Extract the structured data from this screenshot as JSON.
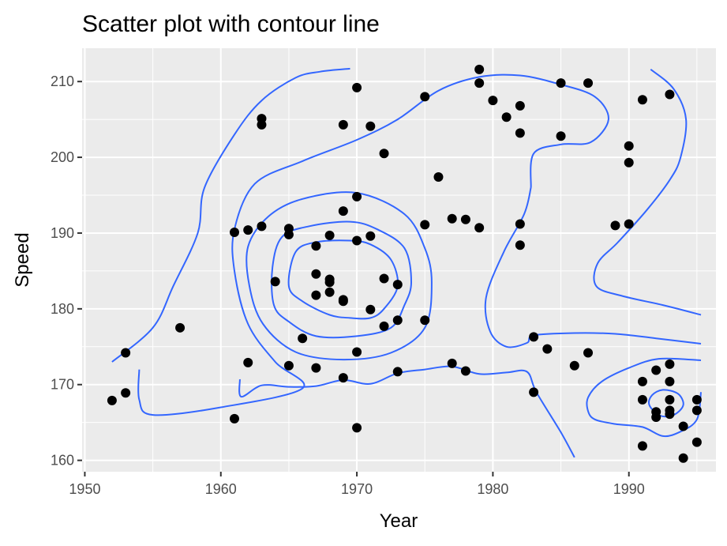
{
  "chart_data": {
    "type": "scatter",
    "title": "Scatter plot with contour line",
    "xlabel": "Year",
    "ylabel": "Speed",
    "xlim": [
      1949.8,
      1996.4
    ],
    "ylim": [
      158.5,
      214.4
    ],
    "x_ticks": [
      1950,
      1960,
      1970,
      1980,
      1990
    ],
    "y_ticks": [
      160,
      170,
      180,
      190,
      200,
      210
    ],
    "grid": true,
    "legend": "none",
    "colors": {
      "panel": "#ebebeb",
      "grid": "#ffffff",
      "point": "#000000",
      "contour": "#3366ff"
    },
    "points": [
      [
        1952,
        167.9
      ],
      [
        1953,
        168.9
      ],
      [
        1953,
        174.2
      ],
      [
        1957,
        177.5
      ],
      [
        1961,
        165.5
      ],
      [
        1961,
        190.1
      ],
      [
        1962,
        190.4
      ],
      [
        1962,
        172.9
      ],
      [
        1963,
        190.9
      ],
      [
        1963,
        205.1
      ],
      [
        1963,
        204.3
      ],
      [
        1964,
        183.6
      ],
      [
        1965,
        190.6
      ],
      [
        1965,
        189.8
      ],
      [
        1965,
        172.5
      ],
      [
        1966,
        176.1
      ],
      [
        1967,
        188.3
      ],
      [
        1967,
        184.6
      ],
      [
        1967,
        181.8
      ],
      [
        1967,
        172.2
      ],
      [
        1968,
        189.7
      ],
      [
        1968,
        183.9
      ],
      [
        1968,
        183.5
      ],
      [
        1968,
        182.2
      ],
      [
        1969,
        181.2
      ],
      [
        1969,
        181.0
      ],
      [
        1969,
        192.9
      ],
      [
        1969,
        204.3
      ],
      [
        1969,
        170.9
      ],
      [
        1970,
        209.2
      ],
      [
        1970,
        194.8
      ],
      [
        1970,
        189.0
      ],
      [
        1970,
        174.3
      ],
      [
        1970,
        164.3
      ],
      [
        1971,
        204.1
      ],
      [
        1971,
        189.6
      ],
      [
        1971,
        179.9
      ],
      [
        1972,
        200.5
      ],
      [
        1972,
        184.0
      ],
      [
        1972,
        177.7
      ],
      [
        1973,
        183.2
      ],
      [
        1973,
        178.5
      ],
      [
        1973,
        171.7
      ],
      [
        1975,
        208.0
      ],
      [
        1975,
        191.1
      ],
      [
        1975,
        178.5
      ],
      [
        1976,
        197.4
      ],
      [
        1977,
        191.9
      ],
      [
        1977,
        172.8
      ],
      [
        1978,
        191.8
      ],
      [
        1978,
        171.8
      ],
      [
        1979,
        211.6
      ],
      [
        1979,
        209.8
      ],
      [
        1979,
        190.7
      ],
      [
        1980,
        207.5
      ],
      [
        1981,
        205.3
      ],
      [
        1982,
        206.8
      ],
      [
        1982,
        203.2
      ],
      [
        1982,
        191.2
      ],
      [
        1982,
        188.4
      ],
      [
        1983,
        176.3
      ],
      [
        1983,
        169.0
      ],
      [
        1984,
        174.7
      ],
      [
        1985,
        209.8
      ],
      [
        1985,
        202.8
      ],
      [
        1986,
        172.5
      ],
      [
        1987,
        209.8
      ],
      [
        1987,
        174.2
      ],
      [
        1989,
        191.0
      ],
      [
        1990,
        201.5
      ],
      [
        1990,
        199.3
      ],
      [
        1990,
        191.2
      ],
      [
        1991,
        207.6
      ],
      [
        1991,
        170.4
      ],
      [
        1991,
        168.0
      ],
      [
        1991,
        161.9
      ],
      [
        1992,
        171.9
      ],
      [
        1992,
        166.4
      ],
      [
        1992,
        165.7
      ],
      [
        1993,
        208.3
      ],
      [
        1993,
        172.7
      ],
      [
        1993,
        170.4
      ],
      [
        1993,
        168.0
      ],
      [
        1993,
        166.6
      ],
      [
        1993,
        166.1
      ],
      [
        1994,
        164.5
      ],
      [
        1994,
        160.3
      ],
      [
        1995,
        168.0
      ],
      [
        1995,
        166.6
      ],
      [
        1995,
        162.4
      ]
    ],
    "contours": [
      [
        [
          1961.4,
          170.7
        ],
        [
          1961.5,
          168.4
        ],
        [
          1963.0,
          169.9
        ],
        [
          1965.0,
          169.7
        ],
        [
          1967.0,
          169.8
        ],
        [
          1969.0,
          170.6
        ],
        [
          1971.0,
          170.1
        ],
        [
          1973.0,
          171.5
        ],
        [
          1975.0,
          172.0
        ],
        [
          1977.0,
          172.4
        ],
        [
          1979.0,
          171.4
        ],
        [
          1981.0,
          171.6
        ],
        [
          1982.5,
          171.7
        ],
        [
          1983.2,
          169.0
        ],
        [
          1985.0,
          163.7
        ],
        [
          1986.0,
          160.4
        ]
      ],
      [
        [
          1952.0,
          173.0
        ],
        [
          1955.0,
          177.5
        ],
        [
          1956.5,
          183.0
        ],
        [
          1958.3,
          190.0
        ],
        [
          1958.8,
          196.0
        ],
        [
          1961.0,
          203.0
        ],
        [
          1963.0,
          207.5
        ],
        [
          1965.5,
          210.5
        ],
        [
          1967.3,
          211.3
        ],
        [
          1969.5,
          211.7
        ]
      ],
      [
        [
          1982.8,
          196.0
        ],
        [
          1983.0,
          200.5
        ],
        [
          1985.0,
          201.7
        ],
        [
          1987.2,
          202.0
        ],
        [
          1988.5,
          205.0
        ],
        [
          1987.5,
          208.0
        ],
        [
          1985.0,
          209.6
        ],
        [
          1982.0,
          210.8
        ],
        [
          1979.0,
          210.6
        ],
        [
          1976.0,
          208.8
        ],
        [
          1973.0,
          205.0
        ],
        [
          1970.0,
          202.3
        ],
        [
          1966.0,
          199.5
        ],
        [
          1962.5,
          196.5
        ],
        [
          1961.0,
          190.5
        ],
        [
          1961.0,
          185.0
        ],
        [
          1962.0,
          178.0
        ],
        [
          1964.0,
          173.0
        ],
        [
          1966.0,
          169.5
        ],
        [
          1960.0,
          167.0
        ],
        [
          1955.0,
          166.0
        ],
        [
          1954.0,
          168.0
        ],
        [
          1954.0,
          172.0
        ]
      ],
      [
        [
          1982.8,
          196.0
        ],
        [
          1982.3,
          192.5
        ],
        [
          1980.8,
          187.5
        ],
        [
          1979.5,
          181.5
        ],
        [
          1979.8,
          177.0
        ],
        [
          1981.0,
          175.0
        ],
        [
          1982.5,
          175.5
        ],
        [
          1983.0,
          176.5
        ],
        [
          1986.0,
          176.8
        ],
        [
          1989.0,
          176.7
        ],
        [
          1992.0,
          176.1
        ],
        [
          1995.3,
          175.4
        ]
      ],
      [
        [
          1991.6,
          211.6
        ],
        [
          1993.3,
          209.0
        ],
        [
          1994.2,
          205.0
        ],
        [
          1993.8,
          200.0
        ],
        [
          1993.0,
          197.0
        ],
        [
          1991.3,
          193.0
        ],
        [
          1989.2,
          188.8
        ],
        [
          1987.7,
          186.0
        ],
        [
          1987.6,
          183.0
        ],
        [
          1989.5,
          181.7
        ],
        [
          1992.5,
          180.5
        ],
        [
          1995.3,
          179.2
        ]
      ],
      [
        [
          1995.3,
          169.0
        ],
        [
          1995.0,
          165.4
        ],
        [
          1993.8,
          163.8
        ],
        [
          1992.5,
          163.2
        ],
        [
          1991.0,
          164.4
        ],
        [
          1989.0,
          164.8
        ],
        [
          1987.5,
          165.4
        ],
        [
          1987.0,
          166.5
        ],
        [
          1987.0,
          168.3
        ],
        [
          1988.0,
          170.4
        ],
        [
          1990.0,
          172.2
        ],
        [
          1992.2,
          173.4
        ],
        [
          1995.3,
          173.2
        ]
      ],
      [
        [
          1991.5,
          167.3
        ],
        [
          1992.3,
          165.9
        ],
        [
          1993.3,
          166.0
        ],
        [
          1994.0,
          167.3
        ],
        [
          1993.6,
          168.8
        ],
        [
          1992.5,
          169.3
        ],
        [
          1991.7,
          168.6
        ],
        [
          1991.5,
          167.3
        ]
      ],
      [
        [
          1970.0,
          195.3
        ],
        [
          1966.0,
          194.5
        ],
        [
          1963.5,
          192.2
        ],
        [
          1962.0,
          188.2
        ],
        [
          1962.1,
          183.0
        ],
        [
          1963.1,
          178.0
        ],
        [
          1965.5,
          174.3
        ],
        [
          1969.0,
          173.3
        ],
        [
          1972.5,
          174.2
        ],
        [
          1975.0,
          177.5
        ],
        [
          1975.5,
          183.5
        ],
        [
          1975.0,
          188.0
        ],
        [
          1973.5,
          192.5
        ],
        [
          1970.0,
          195.3
        ]
      ],
      [
        [
          1969.5,
          191.5
        ],
        [
          1966.5,
          190.9
        ],
        [
          1964.5,
          189.5
        ],
        [
          1963.8,
          185.5
        ],
        [
          1963.9,
          180.5
        ],
        [
          1965.0,
          178.3
        ],
        [
          1967.0,
          176.4
        ],
        [
          1970.0,
          176.4
        ],
        [
          1972.5,
          177.5
        ],
        [
          1973.5,
          180.5
        ],
        [
          1974.0,
          183.5
        ],
        [
          1973.5,
          188.0
        ],
        [
          1971.5,
          190.5
        ],
        [
          1969.5,
          191.5
        ]
      ],
      [
        [
          1969.5,
          189.0
        ],
        [
          1967.0,
          188.8
        ],
        [
          1965.5,
          187.5
        ],
        [
          1965.0,
          183.0
        ],
        [
          1966.0,
          181.0
        ],
        [
          1968.0,
          179.2
        ],
        [
          1969.5,
          178.8
        ],
        [
          1971.0,
          178.8
        ],
        [
          1972.0,
          180.0
        ],
        [
          1973.0,
          183.0
        ],
        [
          1972.5,
          186.5
        ],
        [
          1971.0,
          188.5
        ],
        [
          1969.5,
          189.0
        ]
      ]
    ]
  }
}
